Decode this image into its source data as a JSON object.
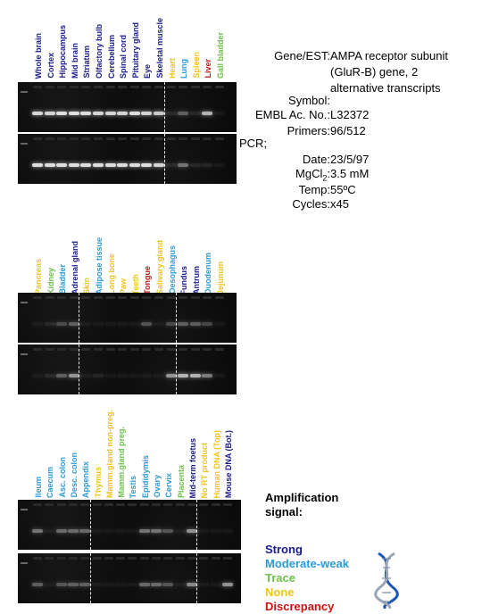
{
  "colors": {
    "strong": "#1a1a8c",
    "moderate": "#2a9bd8",
    "trace": "#6cc24a",
    "none": "#f0c419",
    "discrepancy": "#cc1111"
  },
  "panel1": {
    "lanes": [
      {
        "label": "Whole brain",
        "level": "strong"
      },
      {
        "label": "Cortex",
        "level": "strong"
      },
      {
        "label": "Hippocampus",
        "level": "strong"
      },
      {
        "label": "Mid brain",
        "level": "strong"
      },
      {
        "label": "Striatum",
        "level": "strong"
      },
      {
        "label": "Olfactory bulb",
        "level": "strong"
      },
      {
        "label": "Cerebellum",
        "level": "strong"
      },
      {
        "label": "Spinal cord",
        "level": "strong"
      },
      {
        "label": "Pituitary gland",
        "level": "strong"
      },
      {
        "label": "Eye",
        "level": "strong"
      },
      {
        "label": "Skeletal muscle",
        "level": "strong"
      },
      {
        "label": "Heart",
        "level": "none"
      },
      {
        "label": "Lung",
        "level": "moderate"
      },
      {
        "label": "Spleen",
        "level": "none"
      },
      {
        "label": "Liver",
        "level": "discrepancy"
      },
      {
        "label": "Gall bladder",
        "level": "trace"
      }
    ],
    "dividers_after": [
      11
    ],
    "top_bands": [
      0.9,
      0.9,
      0.95,
      0.95,
      0.95,
      0.9,
      0.9,
      0.9,
      0.95,
      0.9,
      0.85,
      0.1,
      0.35,
      0.1,
      0.75,
      0.05
    ],
    "bottom_bands": [
      0.95,
      0.95,
      0.95,
      0.95,
      0.95,
      0.95,
      0.95,
      0.95,
      0.95,
      0.95,
      0.9,
      0.1,
      0.45,
      0.1,
      0.1,
      0.05
    ]
  },
  "panel2": {
    "lanes": [
      {
        "label": "Pancreas",
        "level": "none"
      },
      {
        "label": "Kidney",
        "level": "trace"
      },
      {
        "label": "Bladder",
        "level": "moderate"
      },
      {
        "label": "Adrenal gland",
        "level": "strong"
      },
      {
        "label": "Skin",
        "level": "none"
      },
      {
        "label": "Adipose tissue",
        "level": "moderate"
      },
      {
        "label": "Long bone",
        "level": "none"
      },
      {
        "label": "Paw",
        "level": "none"
      },
      {
        "label": "Teeth",
        "level": "none"
      },
      {
        "label": "Tongue",
        "level": "discrepancy"
      },
      {
        "label": "Salivary gland",
        "level": "none"
      },
      {
        "label": "Oesophagus",
        "level": "moderate"
      },
      {
        "label": "Fundus",
        "level": "strong"
      },
      {
        "label": "Antrum",
        "level": "strong"
      },
      {
        "label": "Duodenum",
        "level": "moderate"
      },
      {
        "label": "Jejunum",
        "level": "none"
      }
    ],
    "dividers_after": [
      4,
      12
    ],
    "top_bands": [
      0.05,
      0.1,
      0.25,
      0.35,
      0.05,
      0.05,
      0.05,
      0.05,
      0.05,
      0.3,
      0.05,
      0.25,
      0.35,
      0.35,
      0.25,
      0.05
    ],
    "bottom_bands": [
      0.05,
      0.1,
      0.35,
      0.6,
      0.05,
      0.1,
      0.05,
      0.05,
      0.05,
      0.05,
      0.05,
      0.6,
      0.75,
      0.75,
      0.5,
      0.05
    ]
  },
  "panel3": {
    "lanes": [
      {
        "label": "Ileum",
        "level": "moderate"
      },
      {
        "label": "Caecum",
        "level": "moderate"
      },
      {
        "label": "Asc. colon",
        "level": "moderate"
      },
      {
        "label": "Desc. colon",
        "level": "moderate"
      },
      {
        "label": "Appendix",
        "level": "moderate"
      },
      {
        "label": "Thymus",
        "level": "none"
      },
      {
        "label": "Mamm.gland non-preg.",
        "level": "none"
      },
      {
        "label": "Mamm.gland preg.",
        "level": "trace"
      },
      {
        "label": "Testis",
        "level": "moderate"
      },
      {
        "label": "Epididymis",
        "level": "moderate"
      },
      {
        "label": "Ovary",
        "level": "moderate"
      },
      {
        "label": "Cervix",
        "level": "moderate"
      },
      {
        "label": "Placenta",
        "level": "trace"
      },
      {
        "label": "Mid-term foetus",
        "level": "strong"
      },
      {
        "label": "No RT product",
        "level": "none"
      },
      {
        "label": "Human DNA (Top)",
        "level": "none"
      },
      {
        "label": "Mouse DNA (Bot.)",
        "level": "strong"
      }
    ],
    "dividers_after": [
      5,
      14
    ],
    "top_bands": [
      0.45,
      0.05,
      0.4,
      0.4,
      0.4,
      0.05,
      0.05,
      0.05,
      0.05,
      0.45,
      0.45,
      0.3,
      0.05,
      0.6,
      0.05,
      0.05,
      0.05
    ],
    "bottom_bands": [
      0.35,
      0.05,
      0.3,
      0.35,
      0.35,
      0.05,
      0.05,
      0.05,
      0.05,
      0.4,
      0.4,
      0.3,
      0.05,
      0.55,
      0.05,
      0.05,
      0.6
    ]
  },
  "info": {
    "rows": [
      {
        "key": "Gene/EST:",
        "value": "AMPA receptor subunit"
      },
      {
        "key": "",
        "value": "(GluR-B) gene, 2"
      },
      {
        "key": "",
        "value": "alternative transcripts"
      },
      {
        "key": "Symbol:",
        "value": ""
      },
      {
        "key": "EMBL Ac. No.:",
        "value": "L32372"
      },
      {
        "key": "Primers:",
        "value": "96/512"
      },
      {
        "key": "PCR;",
        "value": ""
      },
      {
        "key": "Date:",
        "value": "23/5/97"
      },
      {
        "key": "MgCl",
        "value": "3.5 mM"
      },
      {
        "key": "Temp:",
        "value": "55ºC"
      },
      {
        "key": "Cycles:",
        "value": "x45"
      }
    ]
  },
  "legend": {
    "title_line1": "Amplification",
    "title_line2": "signal:",
    "strong": "Strong",
    "moderate": "Moderate-weak",
    "trace": "Trace",
    "none": "None",
    "discrepancy": "Discrepancy"
  }
}
